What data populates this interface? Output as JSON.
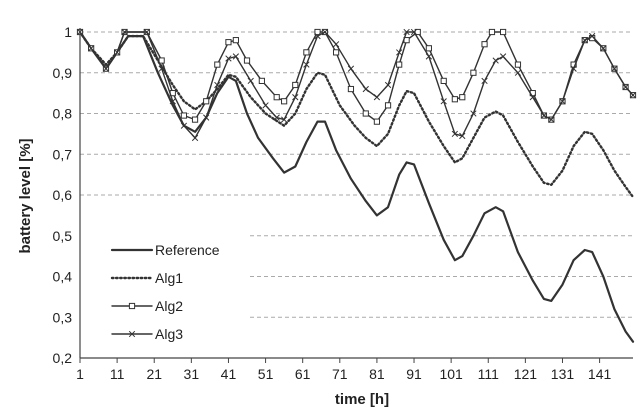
{
  "chart_data": {
    "type": "line",
    "title": "",
    "xlabel": "time [h]",
    "ylabel": "battery level [%]",
    "xlim": [
      1,
      150
    ],
    "ylim": [
      0.2,
      1.0
    ],
    "x_ticks": [
      "1",
      "11",
      "21",
      "31",
      "41",
      "51",
      "61",
      "71",
      "81",
      "91",
      "101",
      "111",
      "121",
      "131",
      "141"
    ],
    "y_ticks": [
      "0,2",
      "0,3",
      "0,4",
      "0,5",
      "0,6",
      "0,7",
      "0,8",
      "0,9",
      "1"
    ],
    "grid": "horizontal-dashed",
    "legend_position": "bottom-left",
    "colors": {
      "line": "#333333",
      "grid": "#aaaaaa",
      "axis": "#444444"
    },
    "series": [
      {
        "name": "Reference",
        "style": "solid",
        "marker": "none",
        "points": [
          [
            1,
            1.0
          ],
          [
            4,
            0.96
          ],
          [
            8,
            0.91
          ],
          [
            11,
            0.95
          ],
          [
            14,
            0.99
          ],
          [
            18,
            0.99
          ],
          [
            22,
            0.9
          ],
          [
            26,
            0.82
          ],
          [
            29,
            0.77
          ],
          [
            32,
            0.755
          ],
          [
            35,
            0.79
          ],
          [
            38,
            0.85
          ],
          [
            41,
            0.89
          ],
          [
            43,
            0.88
          ],
          [
            46,
            0.8
          ],
          [
            49,
            0.74
          ],
          [
            53,
            0.69
          ],
          [
            56,
            0.655
          ],
          [
            59,
            0.67
          ],
          [
            62,
            0.73
          ],
          [
            65,
            0.78
          ],
          [
            67,
            0.78
          ],
          [
            70,
            0.71
          ],
          [
            74,
            0.64
          ],
          [
            78,
            0.585
          ],
          [
            81,
            0.55
          ],
          [
            84,
            0.57
          ],
          [
            87,
            0.65
          ],
          [
            89,
            0.68
          ],
          [
            91,
            0.675
          ],
          [
            95,
            0.58
          ],
          [
            99,
            0.49
          ],
          [
            102,
            0.44
          ],
          [
            104,
            0.45
          ],
          [
            107,
            0.5
          ],
          [
            110,
            0.555
          ],
          [
            113,
            0.57
          ],
          [
            115,
            0.56
          ],
          [
            119,
            0.46
          ],
          [
            123,
            0.39
          ],
          [
            126,
            0.345
          ],
          [
            128,
            0.34
          ],
          [
            131,
            0.38
          ],
          [
            134,
            0.44
          ],
          [
            137,
            0.465
          ],
          [
            139,
            0.46
          ],
          [
            142,
            0.4
          ],
          [
            145,
            0.32
          ],
          [
            148,
            0.265
          ],
          [
            150,
            0.24
          ]
        ]
      },
      {
        "name": "Alg1",
        "style": "dotted",
        "marker": "none",
        "points": [
          [
            1,
            1.0
          ],
          [
            4,
            0.96
          ],
          [
            8,
            0.92
          ],
          [
            11,
            0.95
          ],
          [
            14,
            0.99
          ],
          [
            18,
            0.99
          ],
          [
            22,
            0.93
          ],
          [
            26,
            0.87
          ],
          [
            29,
            0.83
          ],
          [
            32,
            0.81
          ],
          [
            35,
            0.83
          ],
          [
            38,
            0.86
          ],
          [
            41,
            0.895
          ],
          [
            43,
            0.89
          ],
          [
            47,
            0.84
          ],
          [
            51,
            0.8
          ],
          [
            56,
            0.77
          ],
          [
            59,
            0.8
          ],
          [
            62,
            0.86
          ],
          [
            65,
            0.9
          ],
          [
            67,
            0.895
          ],
          [
            71,
            0.82
          ],
          [
            75,
            0.77
          ],
          [
            78,
            0.74
          ],
          [
            81,
            0.72
          ],
          [
            84,
            0.75
          ],
          [
            87,
            0.82
          ],
          [
            89,
            0.855
          ],
          [
            91,
            0.85
          ],
          [
            95,
            0.78
          ],
          [
            99,
            0.72
          ],
          [
            102,
            0.68
          ],
          [
            104,
            0.69
          ],
          [
            107,
            0.74
          ],
          [
            110,
            0.79
          ],
          [
            113,
            0.805
          ],
          [
            115,
            0.795
          ],
          [
            119,
            0.73
          ],
          [
            123,
            0.67
          ],
          [
            126,
            0.63
          ],
          [
            128,
            0.625
          ],
          [
            131,
            0.66
          ],
          [
            134,
            0.72
          ],
          [
            137,
            0.755
          ],
          [
            139,
            0.75
          ],
          [
            142,
            0.71
          ],
          [
            145,
            0.66
          ],
          [
            148,
            0.62
          ],
          [
            150,
            0.595
          ]
        ]
      },
      {
        "name": "Alg2",
        "style": "solid",
        "marker": "square",
        "points": [
          [
            1,
            1.0
          ],
          [
            4,
            0.96
          ],
          [
            8,
            0.91
          ],
          [
            11,
            0.95
          ],
          [
            13,
            1.0
          ],
          [
            19,
            1.0
          ],
          [
            23,
            0.93
          ],
          [
            26,
            0.85
          ],
          [
            29,
            0.795
          ],
          [
            32,
            0.785
          ],
          [
            35,
            0.83
          ],
          [
            38,
            0.92
          ],
          [
            41,
            0.975
          ],
          [
            43,
            0.98
          ],
          [
            46,
            0.93
          ],
          [
            50,
            0.88
          ],
          [
            54,
            0.84
          ],
          [
            56,
            0.83
          ],
          [
            59,
            0.87
          ],
          [
            62,
            0.95
          ],
          [
            65,
            1.0
          ],
          [
            67,
            1.0
          ],
          [
            70,
            0.95
          ],
          [
            74,
            0.86
          ],
          [
            78,
            0.8
          ],
          [
            81,
            0.78
          ],
          [
            84,
            0.82
          ],
          [
            87,
            0.92
          ],
          [
            89,
            0.98
          ],
          [
            92,
            1.0
          ],
          [
            95,
            0.96
          ],
          [
            99,
            0.88
          ],
          [
            102,
            0.835
          ],
          [
            104,
            0.84
          ],
          [
            107,
            0.9
          ],
          [
            110,
            0.97
          ],
          [
            112,
            1.0
          ],
          [
            115,
            1.0
          ],
          [
            119,
            0.92
          ],
          [
            123,
            0.85
          ],
          [
            126,
            0.795
          ],
          [
            128,
            0.785
          ],
          [
            131,
            0.83
          ],
          [
            134,
            0.92
          ],
          [
            137,
            0.98
          ],
          [
            139,
            0.985
          ],
          [
            142,
            0.96
          ],
          [
            145,
            0.91
          ],
          [
            148,
            0.865
          ],
          [
            150,
            0.845
          ]
        ]
      },
      {
        "name": "Alg3",
        "style": "solid",
        "marker": "cross",
        "points": [
          [
            1,
            1.0
          ],
          [
            4,
            0.96
          ],
          [
            8,
            0.91
          ],
          [
            11,
            0.95
          ],
          [
            13,
            1.0
          ],
          [
            19,
            1.0
          ],
          [
            23,
            0.91
          ],
          [
            26,
            0.83
          ],
          [
            29,
            0.77
          ],
          [
            32,
            0.74
          ],
          [
            35,
            0.79
          ],
          [
            38,
            0.87
          ],
          [
            41,
            0.935
          ],
          [
            43,
            0.94
          ],
          [
            47,
            0.88
          ],
          [
            51,
            0.82
          ],
          [
            54,
            0.79
          ],
          [
            56,
            0.785
          ],
          [
            59,
            0.84
          ],
          [
            62,
            0.92
          ],
          [
            65,
            0.99
          ],
          [
            67,
            1.0
          ],
          [
            70,
            0.97
          ],
          [
            74,
            0.91
          ],
          [
            78,
            0.86
          ],
          [
            81,
            0.84
          ],
          [
            84,
            0.87
          ],
          [
            87,
            0.95
          ],
          [
            89,
            1.0
          ],
          [
            91,
            1.0
          ],
          [
            95,
            0.94
          ],
          [
            99,
            0.83
          ],
          [
            102,
            0.75
          ],
          [
            104,
            0.745
          ],
          [
            107,
            0.8
          ],
          [
            110,
            0.88
          ],
          [
            113,
            0.93
          ],
          [
            115,
            0.94
          ],
          [
            119,
            0.9
          ],
          [
            123,
            0.84
          ],
          [
            126,
            0.795
          ],
          [
            128,
            0.785
          ],
          [
            131,
            0.83
          ],
          [
            134,
            0.91
          ],
          [
            137,
            0.98
          ],
          [
            139,
            0.99
          ],
          [
            142,
            0.96
          ],
          [
            145,
            0.91
          ],
          [
            148,
            0.865
          ],
          [
            150,
            0.845
          ]
        ]
      }
    ]
  }
}
